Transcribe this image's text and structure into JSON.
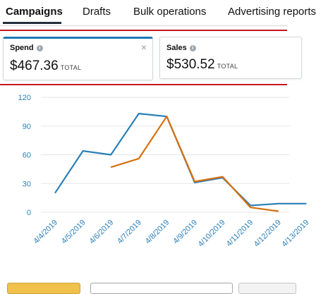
{
  "tabs": [
    {
      "label": "Campaigns",
      "active": true
    },
    {
      "label": "Drafts",
      "active": false
    },
    {
      "label": "Bulk operations",
      "active": false
    },
    {
      "label": "Advertising reports",
      "active": false
    }
  ],
  "metrics": [
    {
      "title": "Spend",
      "value": "$467.36",
      "unit": "TOTAL",
      "selected": true,
      "close": "×",
      "color": "#1f77b4"
    },
    {
      "title": "Sales",
      "value": "$530.52",
      "unit": "TOTAL",
      "selected": false,
      "color": "#d7700f"
    }
  ],
  "chart_data": {
    "type": "line",
    "categories": [
      "4/4/2019",
      "4/5/2019",
      "4/6/2019",
      "4/7/2019",
      "4/8/2019",
      "4/9/2019",
      "4/10/2019",
      "4/11/2019",
      "4/12/2019",
      "4/13/2019"
    ],
    "yticks": [
      0,
      30,
      60,
      90,
      120
    ],
    "ylim": [
      0,
      120
    ],
    "grid": true,
    "series": [
      {
        "color": "#2a7fb8",
        "values": [
          20,
          64,
          60,
          103,
          100,
          31,
          36,
          7,
          9,
          9
        ]
      },
      {
        "color": "#d7700f",
        "values": [
          null,
          null,
          47,
          56,
          100,
          32,
          37,
          5,
          1,
          null
        ]
      }
    ]
  }
}
